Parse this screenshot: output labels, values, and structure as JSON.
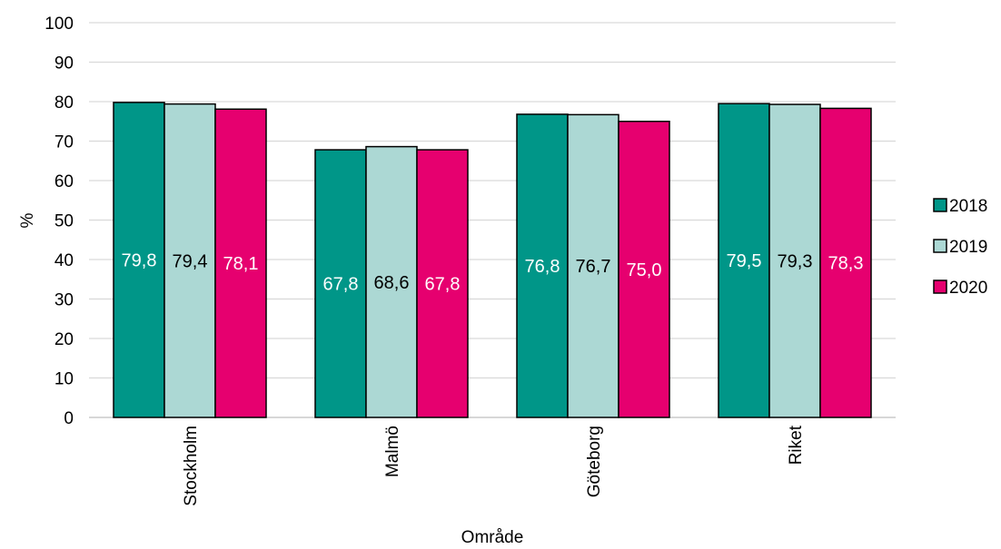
{
  "chart_data": {
    "type": "bar",
    "title": "",
    "xlabel": "Område",
    "ylabel": "%",
    "ylim": [
      0,
      100
    ],
    "yticks": [
      0,
      10,
      20,
      30,
      40,
      50,
      60,
      70,
      80,
      90,
      100
    ],
    "categories": [
      "Stockholm",
      "Malmö",
      "Göteborg",
      "Riket"
    ],
    "series": [
      {
        "name": "2018",
        "color": "#009688",
        "label_color": "#ffffff",
        "values": [
          79.8,
          67.8,
          76.8,
          79.5
        ],
        "labels": [
          "79,8",
          "67,8",
          "76,8",
          "79,5"
        ]
      },
      {
        "name": "2019",
        "color": "#acd8d4",
        "label_color": "#000000",
        "values": [
          79.4,
          68.6,
          76.7,
          79.3
        ],
        "labels": [
          "79,4",
          "68,6",
          "76,7",
          "79,3"
        ]
      },
      {
        "name": "2020",
        "color": "#e6006f",
        "label_color": "#ffffff",
        "values": [
          78.1,
          67.8,
          75.0,
          78.3
        ],
        "labels": [
          "78,1",
          "67,8",
          "75,0",
          "78,3"
        ]
      }
    ],
    "grid": true,
    "legend": "right"
  }
}
